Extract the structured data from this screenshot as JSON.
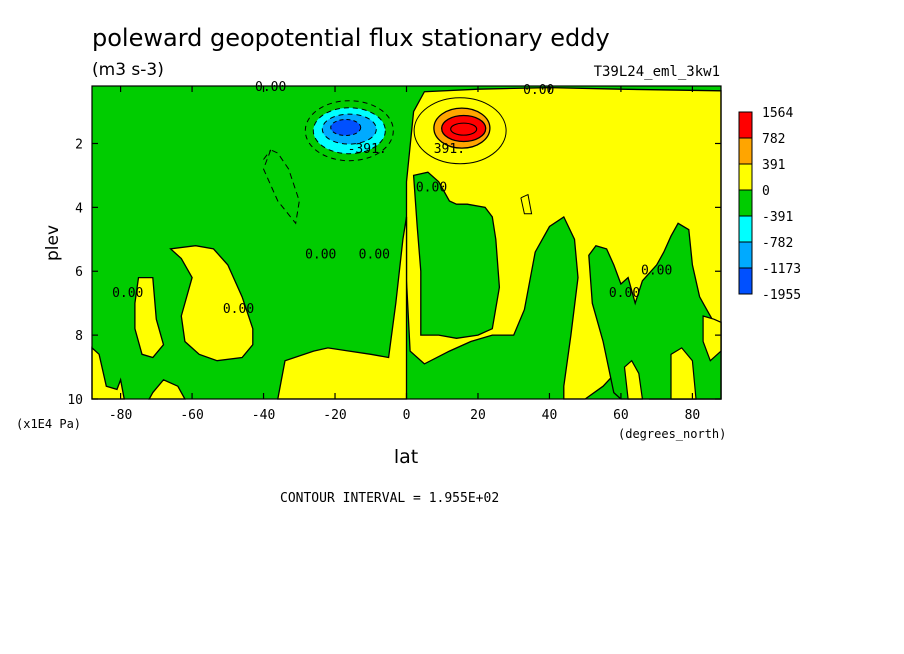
{
  "chart_data": {
    "type": "heatmap",
    "title": "poleward geopotential flux stationary eddy",
    "units": "(m3 s-3)",
    "run_id": "T39L24_eml_3kw1",
    "xlabel": "lat",
    "xunits": "(degrees_north)",
    "ylabel": "plev",
    "yunits": "(x1E4 Pa)",
    "xlim": [
      -88,
      88
    ],
    "ylim": [
      10,
      0.2
    ],
    "x_ticks": [
      -80,
      -60,
      -40,
      -20,
      0,
      20,
      40,
      60,
      80
    ],
    "y_ticks": [
      2,
      4,
      6,
      8,
      10
    ],
    "contour_interval_text": "CONTOUR INTERVAL = 1.955E+02",
    "levels": [
      -1955,
      -1173,
      -782,
      -391,
      0,
      391,
      782,
      1564
    ],
    "colorbar": [
      {
        "label": "1564",
        "color": "#ff0000"
      },
      {
        "label": "782",
        "color": "#ffa500"
      },
      {
        "label": "391",
        "color": "#ffff00"
      },
      {
        "label": "0",
        "color": "#00cc00"
      },
      {
        "label": "-391",
        "color": "#00ffff"
      },
      {
        "label": "-782",
        "color": "#00aaff"
      },
      {
        "label": "-1173",
        "color": "#0050ff"
      },
      {
        "label": "-1955",
        "color": "#ffffff"
      }
    ],
    "fill_colors": {
      "positive": "#ffff00",
      "negative": "#00cc00",
      "pos_782": "#ffa500",
      "pos_1564": "#ff0000",
      "neg_782": "#00ffff",
      "neg_1173": "#00aaff",
      "neg_1955": "#0050ff"
    },
    "contour_labels": [
      {
        "text": "0.00",
        "lat": -38,
        "plev": 0.35
      },
      {
        "text": "0.00",
        "lat": 37,
        "plev": 0.45
      },
      {
        "text": "-391.",
        "lat": -11,
        "plev": 2.3
      },
      {
        "text": "391.",
        "lat": 12,
        "plev": 2.3
      },
      {
        "text": "0.00",
        "lat": 7,
        "plev": 3.5
      },
      {
        "text": "0.00",
        "lat": -24,
        "plev": 5.6
      },
      {
        "text": "0.00",
        "lat": -9,
        "plev": 5.6
      },
      {
        "text": "0.00",
        "lat": -78,
        "plev": 6.8
      },
      {
        "text": "0.00",
        "lat": -47,
        "plev": 7.3
      },
      {
        "text": "0.00",
        "lat": 61,
        "plev": 6.8
      },
      {
        "text": "0.00",
        "lat": 70,
        "plev": 6.1
      }
    ]
  }
}
